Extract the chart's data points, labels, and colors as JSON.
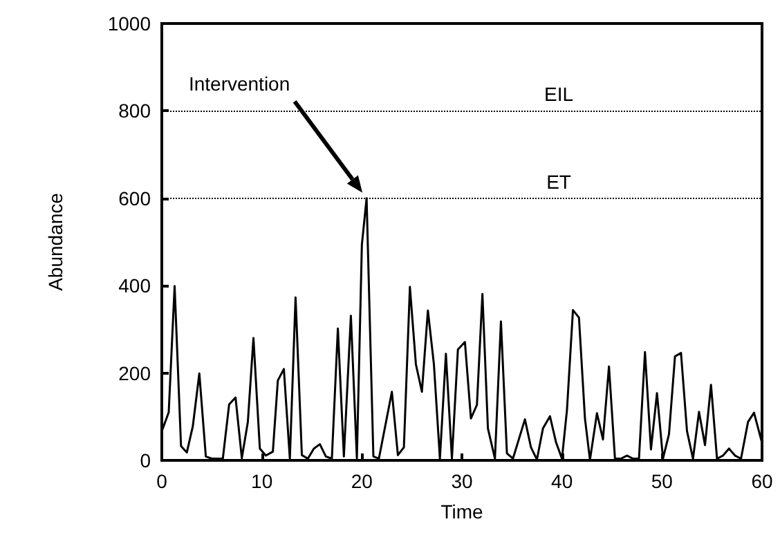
{
  "chart_data": {
    "type": "line",
    "xlabel": "Time",
    "ylabel": "Abundance",
    "x": [
      0,
      0.69,
      1.28,
      1.92,
      2.5,
      3.1,
      3.75,
      4.4,
      5.0,
      6.1,
      6.73,
      7.37,
      8.0,
      8.6,
      9.16,
      9.8,
      10.4,
      11.1,
      11.6,
      12.2,
      12.8,
      13.37,
      14.0,
      14.6,
      15.2,
      15.8,
      16.4,
      17.0,
      17.6,
      18.2,
      18.9,
      19.5,
      20.0,
      20.47,
      21.15,
      21.7,
      23.0,
      23.6,
      24.2,
      24.8,
      25.4,
      26.0,
      26.6,
      27.2,
      27.8,
      28.4,
      29.0,
      29.6,
      30.3,
      30.9,
      31.5,
      32.05,
      32.6,
      33.3,
      33.9,
      34.5,
      35.1,
      36.3,
      36.9,
      37.5,
      38.1,
      38.8,
      39.4,
      40.0,
      40.5,
      41.1,
      41.7,
      42.3,
      42.8,
      43.5,
      44.1,
      44.7,
      45.3,
      45.9,
      46.5,
      47.1,
      47.7,
      48.3,
      48.9,
      49.5,
      50.1,
      50.7,
      51.3,
      51.9,
      52.5,
      53.1,
      53.7,
      54.3,
      54.9,
      55.5,
      56.1,
      56.7,
      57.3,
      57.9,
      58.6,
      59.2,
      60
    ],
    "series": [
      {
        "color": "#000000",
        "values": [
          67,
          110,
          399,
          33,
          18,
          78,
          199,
          9,
          4,
          4,
          128,
          144,
          5,
          88,
          280,
          27,
          11,
          20,
          183,
          209,
          4,
          373,
          12,
          4,
          27,
          37,
          9,
          4,
          302,
          9,
          331,
          5,
          494,
          600,
          9,
          4,
          157,
          12,
          30,
          397,
          220,
          157,
          343,
          220,
          4,
          244,
          4,
          254,
          271,
          96,
          127,
          381,
          73,
          4,
          318,
          16,
          4,
          94,
          30,
          2,
          73,
          101,
          42,
          4,
          115,
          344,
          327,
          96,
          1,
          108,
          48,
          215,
          4,
          4,
          11,
          4,
          4,
          248,
          25,
          154,
          4,
          60,
          238,
          246,
          67,
          4,
          111,
          35,
          173,
          4,
          11,
          27,
          11,
          4,
          88,
          109,
          40
        ]
      }
    ],
    "xlim": [
      0,
      60
    ],
    "xticks": [
      0,
      10,
      20,
      30,
      40,
      50,
      60
    ],
    "ylim": [
      0,
      1000
    ],
    "yticks": [
      0,
      200,
      400,
      600,
      800,
      1000
    ],
    "ref_lines": [
      {
        "axis": "y",
        "value": 800,
        "label": "EIL",
        "line_style": "dotted",
        "color": "#000000"
      },
      {
        "axis": "y",
        "value": 600,
        "label": "ET",
        "line_style": "dotted",
        "color": "#000000"
      }
    ],
    "annotations": [
      "Intervention"
    ],
    "grid": false,
    "marker": "none",
    "line_style": "solid"
  }
}
